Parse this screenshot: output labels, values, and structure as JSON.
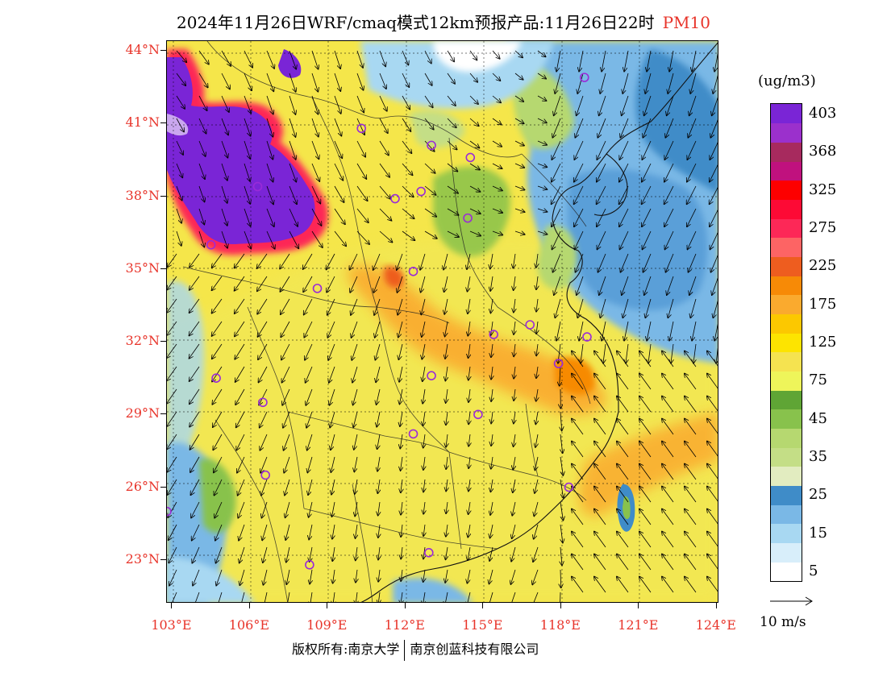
{
  "title": {
    "text": "2024年11月26日WRF/cmaq模式12km预报产品:11月26日22时",
    "pollutant": "PM10",
    "pollutant_color": "#e8342a"
  },
  "map": {
    "lat_range": [
      21.2,
      44.4
    ],
    "lon_range": [
      102.8,
      124.1
    ],
    "lat_labels": [
      {
        "value": 44,
        "text": "44°N"
      },
      {
        "value": 41,
        "text": "41°N"
      },
      {
        "value": 38,
        "text": "38°N"
      },
      {
        "value": 35,
        "text": "35°N"
      },
      {
        "value": 32,
        "text": "32°N"
      },
      {
        "value": 29,
        "text": "29°N"
      },
      {
        "value": 26,
        "text": "26°N"
      },
      {
        "value": 23,
        "text": "23°N"
      }
    ],
    "lon_labels": [
      {
        "value": 103,
        "text": "103°E"
      },
      {
        "value": 106,
        "text": "106°E"
      },
      {
        "value": 109,
        "text": "109°E"
      },
      {
        "value": 112,
        "text": "112°E"
      },
      {
        "value": 115,
        "text": "115°E"
      },
      {
        "value": 118,
        "text": "118°E"
      },
      {
        "value": 121,
        "text": "121°E"
      },
      {
        "value": 124,
        "text": "124°E"
      }
    ],
    "city_markers": [
      [
        110.3,
        40.8
      ],
      [
        113.0,
        40.1
      ],
      [
        114.5,
        39.6
      ],
      [
        118.9,
        42.9
      ],
      [
        111.6,
        37.9
      ],
      [
        112.6,
        38.2
      ],
      [
        114.4,
        37.1
      ],
      [
        106.3,
        38.4
      ],
      [
        104.5,
        36.0
      ],
      [
        112.3,
        34.9
      ],
      [
        108.6,
        34.2
      ],
      [
        115.4,
        32.3
      ],
      [
        116.8,
        32.7
      ],
      [
        119.0,
        32.2
      ],
      [
        117.9,
        31.1
      ],
      [
        113.0,
        30.6
      ],
      [
        104.7,
        30.5
      ],
      [
        106.5,
        29.5
      ],
      [
        114.8,
        29.0
      ],
      [
        112.3,
        28.2
      ],
      [
        106.6,
        26.5
      ],
      [
        118.3,
        26.0
      ],
      [
        102.8,
        25.0
      ],
      [
        108.3,
        22.8
      ],
      [
        112.9,
        23.3
      ]
    ],
    "city_marker_color": "#9a2bd8"
  },
  "colorbar": {
    "unit": "(ug/m3)",
    "levels": [
      {
        "color": "#ffffff",
        "label": "5"
      },
      {
        "color": "#d8eefa",
        "label": ""
      },
      {
        "color": "#a8d8f2",
        "label": "15"
      },
      {
        "color": "#7ab8e6",
        "label": ""
      },
      {
        "color": "#3f8cc8",
        "label": "25"
      },
      {
        "color": "#e2ecc0",
        "label": ""
      },
      {
        "color": "#c4de86",
        "label": "35"
      },
      {
        "color": "#b6d870",
        "label": ""
      },
      {
        "color": "#88c24c",
        "label": "45"
      },
      {
        "color": "#5fa535",
        "label": ""
      },
      {
        "color": "#eef55a",
        "label": "75"
      },
      {
        "color": "#f5e350",
        "label": ""
      },
      {
        "color": "#fde400",
        "label": "125"
      },
      {
        "color": "#fcc800",
        "label": ""
      },
      {
        "color": "#faaa2e",
        "label": "175"
      },
      {
        "color": "#f78a06",
        "label": ""
      },
      {
        "color": "#ee5d1f",
        "label": "225"
      },
      {
        "color": "#fd6464",
        "label": ""
      },
      {
        "color": "#fd2857",
        "label": "275"
      },
      {
        "color": "#fd0a35",
        "label": ""
      },
      {
        "color": "#fd0000",
        "label": "325"
      },
      {
        "color": "#c0117e",
        "label": ""
      },
      {
        "color": "#a72a5e",
        "label": "368"
      },
      {
        "color": "#9b30cc",
        "label": ""
      },
      {
        "color": "#7a25d6",
        "label": "403"
      }
    ]
  },
  "wind_reference": {
    "label": "10 m/s"
  },
  "footer": {
    "left": "版权所有:南京大学",
    "right": "南京创蓝科技有限公司"
  }
}
